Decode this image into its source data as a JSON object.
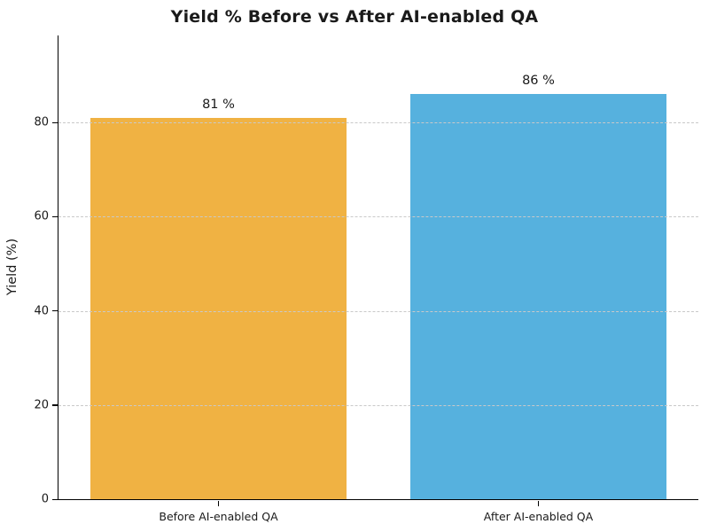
{
  "chart_data": {
    "type": "bar",
    "title": "Yield % Before vs After AI-enabled QA",
    "categories": [
      "Before AI-enabled QA",
      "After AI-enabled QA"
    ],
    "values": [
      81,
      86
    ],
    "value_labels": [
      "81 %",
      "86 %"
    ],
    "bar_colors": [
      "#F0B243",
      "#56B1DE"
    ],
    "xlabel": "",
    "ylabel": "Yield (%)",
    "ylim": [
      0,
      98.5
    ],
    "yticks": [
      0,
      20,
      40,
      60,
      80
    ],
    "grid": "horizontal-dashed",
    "grid_color": "#c9c9c9",
    "legend": "none",
    "bar_width_fraction": 0.8,
    "title_color": "#1a1a1a"
  }
}
